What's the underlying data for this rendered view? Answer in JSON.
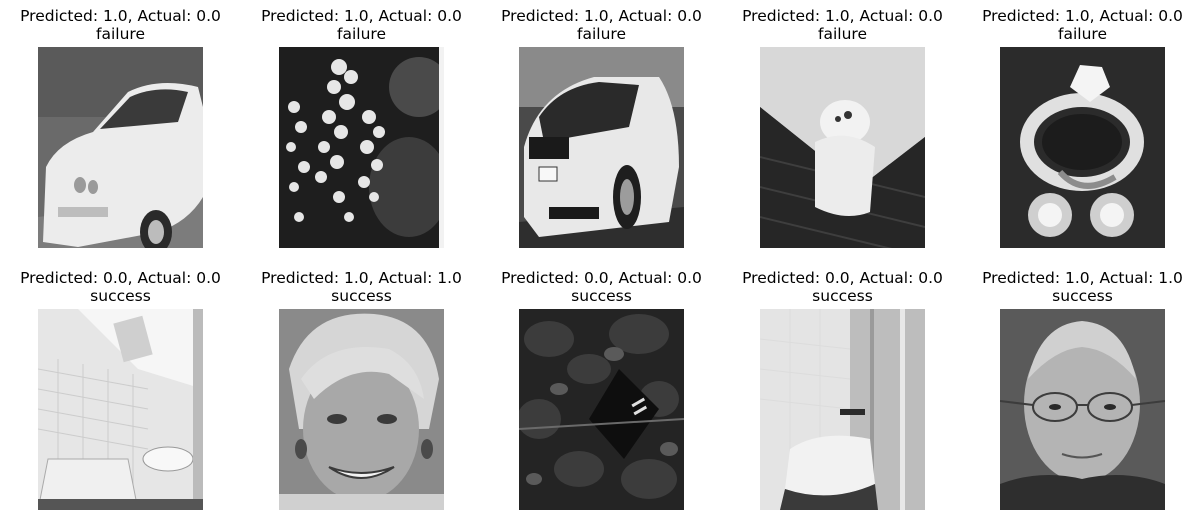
{
  "panels": [
    {
      "predicted": "Predicted: 1.0, Actual: 0.0",
      "status": "failure",
      "image": "white-sports-car"
    },
    {
      "predicted": "Predicted: 1.0, Actual: 0.0",
      "status": "failure",
      "image": "white-flower-cluster"
    },
    {
      "predicted": "Predicted: 1.0, Actual: 0.0",
      "status": "failure",
      "image": "white-car-rear"
    },
    {
      "predicted": "Predicted: 1.0, Actual: 0.0",
      "status": "failure",
      "image": "figurine-on-floor"
    },
    {
      "predicted": "Predicted: 1.0, Actual: 0.0",
      "status": "failure",
      "image": "ring-and-diamonds"
    },
    {
      "predicted": "Predicted: 0.0, Actual: 0.0",
      "status": "success",
      "image": "bathroom-with-sink"
    },
    {
      "predicted": "Predicted: 1.0, Actual: 1.0",
      "status": "success",
      "image": "smiling-woman-face"
    },
    {
      "predicted": "Predicted: 0.0, Actual: 0.0",
      "status": "success",
      "image": "dark-foliage-sign"
    },
    {
      "predicted": "Predicted: 0.0, Actual: 0.0",
      "status": "success",
      "image": "bathroom-shower"
    },
    {
      "predicted": "Predicted: 1.0, Actual: 1.0",
      "status": "success",
      "image": "man-with-glasses-face"
    }
  ]
}
